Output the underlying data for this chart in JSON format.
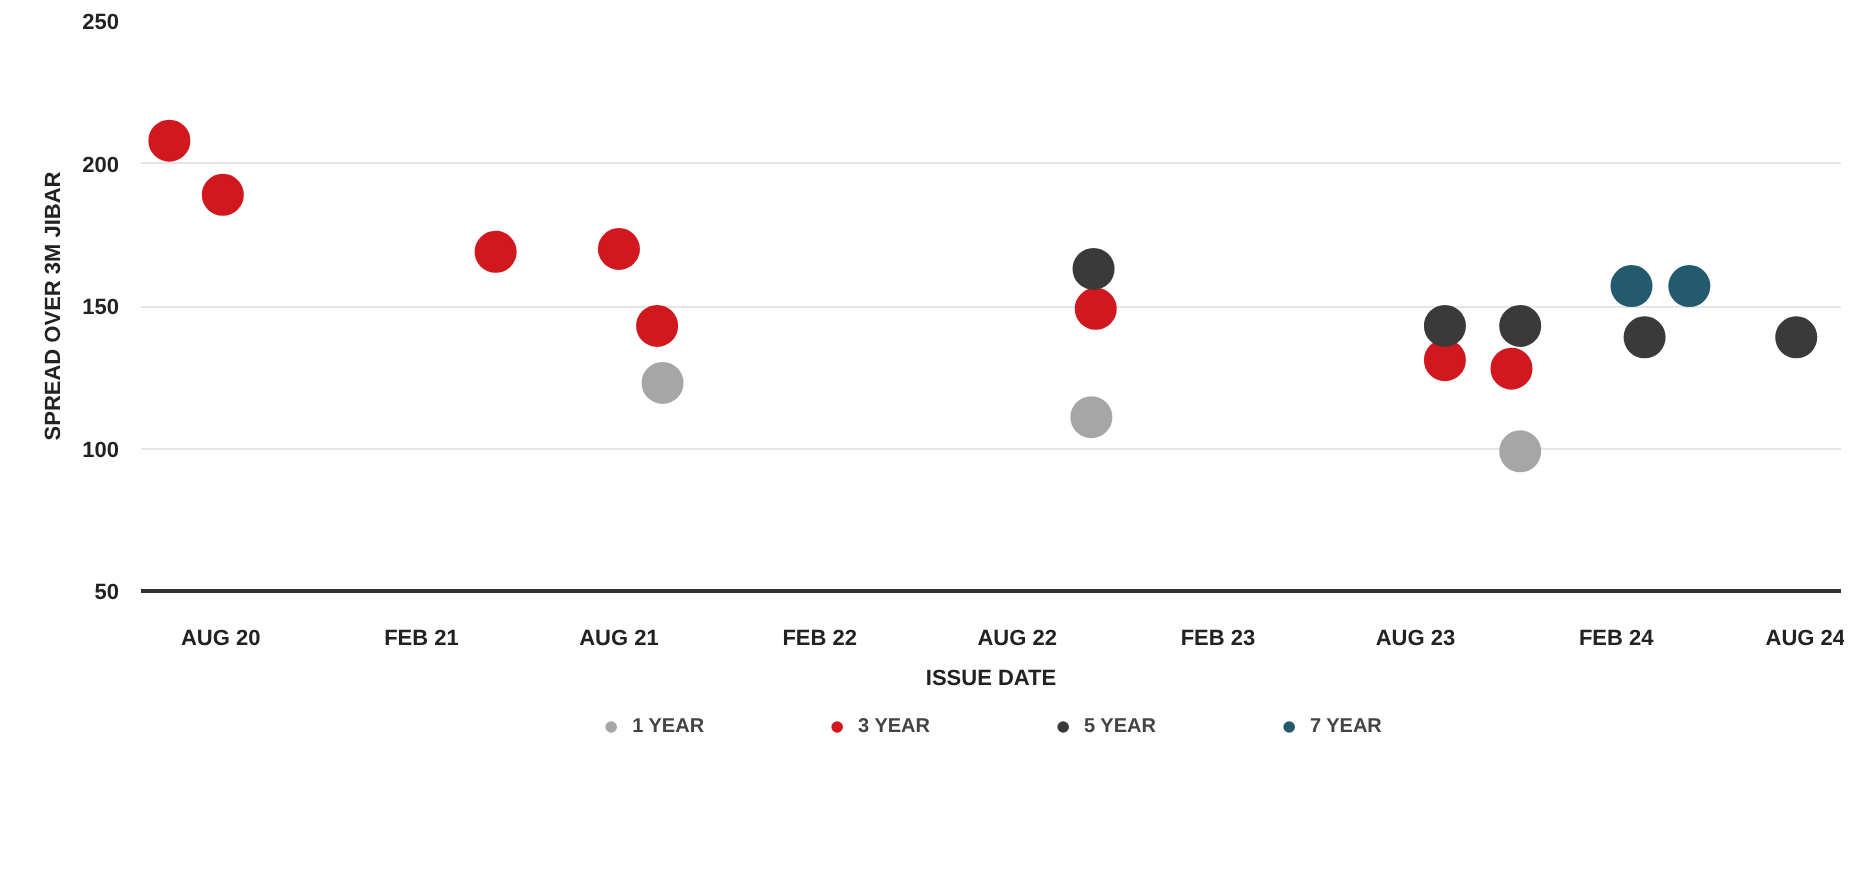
{
  "chart_data": {
    "type": "scatter",
    "xlabel": "ISSUE DATE",
    "ylabel": "SPREAD OVER 3M JIBAR",
    "xlim": [
      "2020-05-20",
      "2024-08-25"
    ],
    "ylim": [
      50,
      250
    ],
    "xticks": [
      {
        "value": "2020-08-01",
        "label": "AUG 20"
      },
      {
        "value": "2021-02-01",
        "label": "FEB 21"
      },
      {
        "value": "2021-08-01",
        "label": "AUG 21"
      },
      {
        "value": "2022-02-01",
        "label": "FEB 22"
      },
      {
        "value": "2022-08-01",
        "label": "AUG 22"
      },
      {
        "value": "2023-02-01",
        "label": "FEB 23"
      },
      {
        "value": "2023-08-01",
        "label": "AUG 23"
      },
      {
        "value": "2024-02-01",
        "label": "FEB 24"
      },
      {
        "value": "2024-08-01",
        "label": "AUG 24"
      }
    ],
    "yticks": [
      50,
      100,
      150,
      200,
      250
    ],
    "grid": "y",
    "legend": "bottom",
    "marker": "circle",
    "series": [
      {
        "name": "1 YEAR",
        "color": "#a6a6a6",
        "x": [
          "2021-09-10",
          "2022-10-08",
          "2023-11-05"
        ],
        "values": [
          123,
          111,
          99
        ]
      },
      {
        "name": "3 YEAR",
        "color": "#d0181e",
        "x": [
          "2020-06-15",
          "2020-08-03",
          "2021-04-10",
          "2021-08-01",
          "2021-09-05",
          "2022-10-12",
          "2023-08-28",
          "2023-10-28"
        ],
        "values": [
          208,
          189,
          169,
          170,
          143,
          149,
          131,
          128
        ]
      },
      {
        "name": "5 YEAR",
        "color": "#3a3a3a",
        "x": [
          "2022-10-10",
          "2023-08-28",
          "2023-11-05",
          "2024-02-27",
          "2024-07-15"
        ],
        "values": [
          163,
          143,
          143,
          139,
          139
        ]
      },
      {
        "name": "7 YEAR",
        "color": "#245a6e",
        "x": [
          "2024-02-15",
          "2024-04-08"
        ],
        "values": [
          157,
          157
        ]
      }
    ]
  }
}
